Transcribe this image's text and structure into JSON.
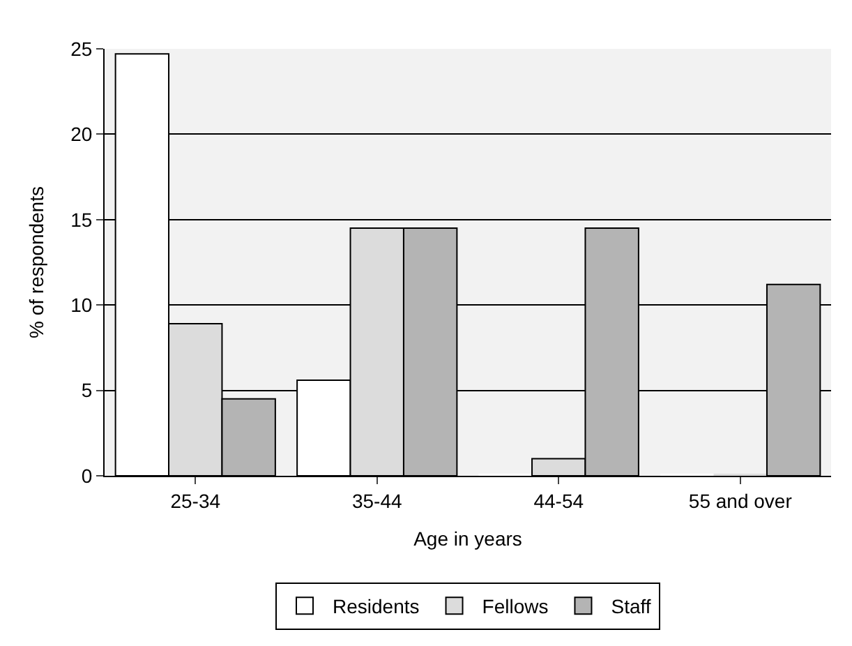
{
  "chart_data": {
    "type": "bar",
    "xlabel": "Age in years",
    "ylabel": "% of respondents",
    "categories": [
      "25-34",
      "35-44",
      "44-54",
      "55 and over"
    ],
    "series": [
      {
        "name": "Residents",
        "color": "#ffffff",
        "values": [
          24.7,
          5.6,
          0,
          0
        ]
      },
      {
        "name": "Fellows",
        "color": "#dcdcdc",
        "values": [
          8.9,
          14.5,
          1.0,
          0
        ]
      },
      {
        "name": "Staff",
        "color": "#b4b4b4",
        "values": [
          4.5,
          14.5,
          14.5,
          11.2
        ]
      }
    ],
    "ylim": [
      0,
      25
    ],
    "yticks": [
      0,
      5,
      10,
      15,
      20,
      25
    ],
    "grid": "y",
    "legend": "bottom"
  }
}
